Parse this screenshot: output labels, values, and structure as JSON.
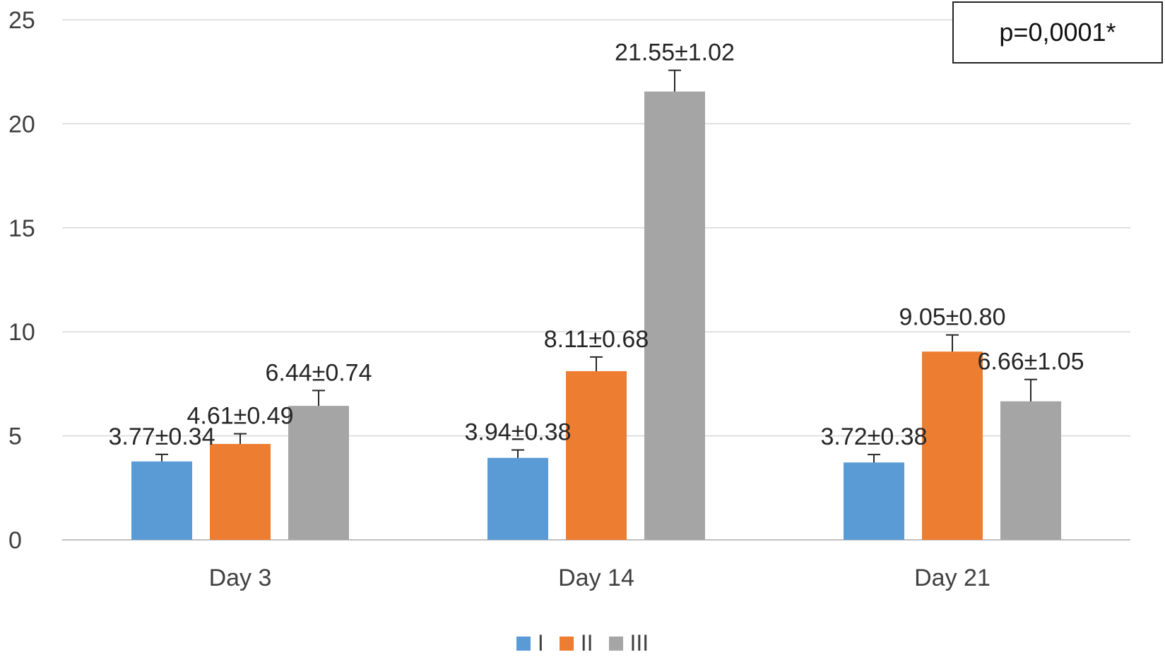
{
  "chart_data": {
    "type": "bar",
    "categories": [
      "Day 3",
      "Day 14",
      "Day 21"
    ],
    "series": [
      {
        "name": "I",
        "color": "#5b9bd5",
        "values": [
          3.77,
          3.94,
          3.72
        ],
        "errors": [
          0.34,
          0.38,
          0.38
        ],
        "labels": [
          "3.77±0.34",
          "3.94±0.38",
          "3.72±0.38"
        ]
      },
      {
        "name": "II",
        "color": "#ed7d31",
        "values": [
          4.61,
          8.11,
          9.05
        ],
        "errors": [
          0.49,
          0.68,
          0.8
        ],
        "labels": [
          "4.61±0.49",
          "8.11±0.68",
          "9.05±0.80"
        ]
      },
      {
        "name": "III",
        "color": "#a5a5a5",
        "values": [
          6.44,
          21.55,
          6.66
        ],
        "errors": [
          0.74,
          1.02,
          1.05
        ],
        "labels": [
          "6.44±0.74",
          "21.55±1.02",
          "6.66±1.05"
        ]
      }
    ],
    "ylim": [
      0,
      25
    ],
    "yticks": [
      "0",
      "5",
      "10",
      "15",
      "20",
      "25"
    ],
    "grid": true,
    "legend_position": "bottom",
    "annotation": "p=0,0001*"
  }
}
